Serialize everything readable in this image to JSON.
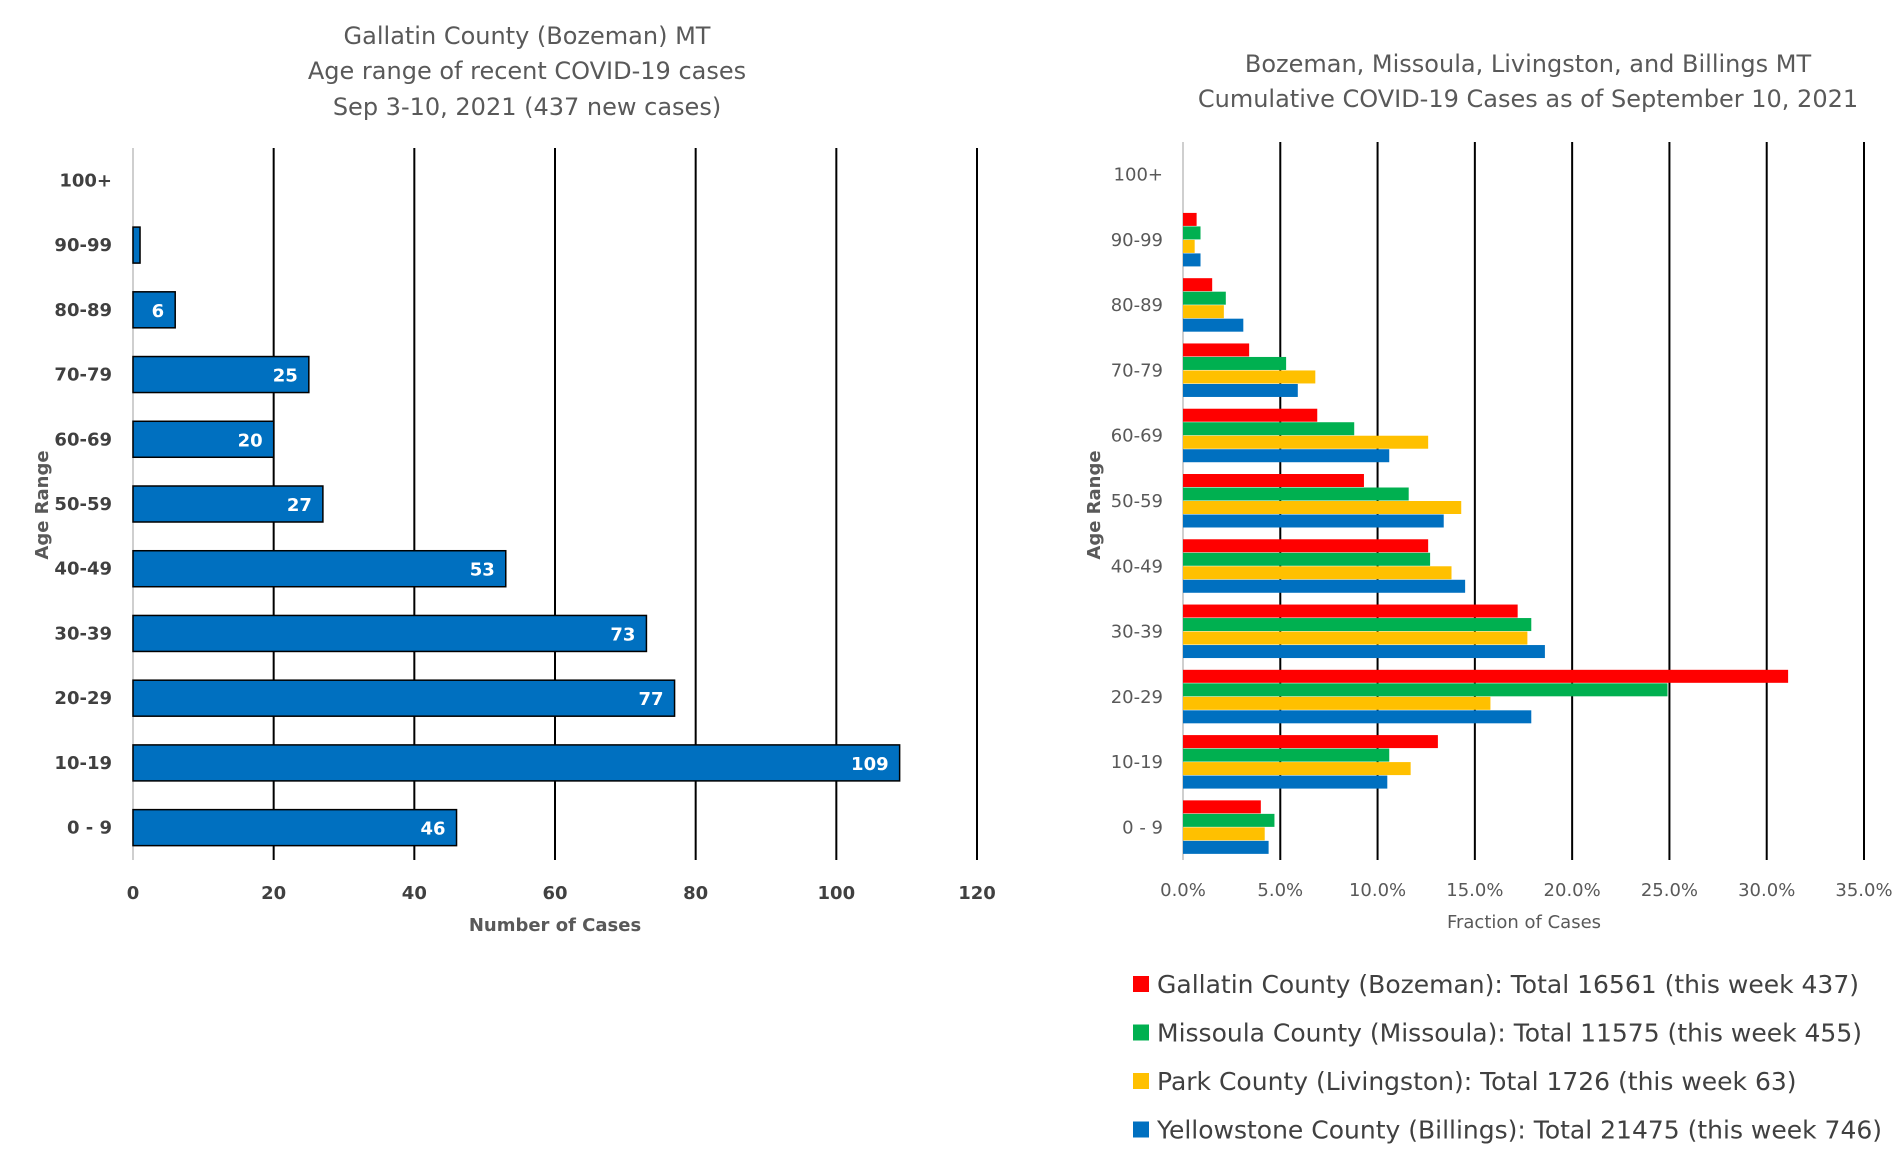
{
  "chart_data": [
    {
      "type": "bar",
      "orientation": "horizontal",
      "title": [
        "Gallatin County (Bozeman) MT",
        "Age range of recent COVID-19 cases",
        "Sep 3-10, 2021 (437 new cases)"
      ],
      "xlabel": "Number of Cases",
      "ylabel": "Age Range",
      "categories": [
        "0 - 9",
        "10-19",
        "20-29",
        "30-39",
        "40-49",
        "50-59",
        "60-69",
        "70-79",
        "80-89",
        "90-99",
        "100+"
      ],
      "values": [
        46,
        109,
        77,
        73,
        53,
        27,
        20,
        25,
        6,
        1,
        0
      ],
      "data_labels": [
        "46",
        "109",
        "77",
        "73",
        "53",
        "27",
        "20",
        "25",
        "6",
        "",
        ""
      ],
      "xlim": [
        0,
        120
      ],
      "xticks": [
        "0",
        "20",
        "40",
        "60",
        "80",
        "100",
        "120"
      ],
      "grid": true,
      "bar_color": "#0070C0"
    },
    {
      "type": "bar",
      "orientation": "horizontal",
      "title": [
        "Bozeman, Missoula, Livingston, and Billings MT",
        "Cumulative COVID-19 Cases as of September 10, 2021"
      ],
      "xlabel": "Fraction of Cases",
      "ylabel": "Age Range",
      "categories": [
        "0 - 9",
        "10-19",
        "20-29",
        "30-39",
        "40-49",
        "50-59",
        "60-69",
        "70-79",
        "80-89",
        "90-99",
        "100+"
      ],
      "xlim": [
        0,
        0.35
      ],
      "xticks": [
        "0.0%",
        "5.0%",
        "10.0%",
        "15.0%",
        "20.0%",
        "25.0%",
        "30.0%",
        "35.0%"
      ],
      "grid": true,
      "legend_position": "bottom",
      "series": [
        {
          "name": "Gallatin County (Bozeman): Total 16561 (this week 437)",
          "color": "#FF0000",
          "values": [
            0.04,
            0.131,
            0.311,
            0.172,
            0.126,
            0.093,
            0.069,
            0.034,
            0.015,
            0.007,
            0
          ]
        },
        {
          "name": "Missoula County (Missoula): Total 11575 (this week 455)",
          "color": "#00B050",
          "values": [
            0.047,
            0.106,
            0.249,
            0.179,
            0.127,
            0.116,
            0.088,
            0.053,
            0.022,
            0.009,
            0
          ]
        },
        {
          "name": "Park County (Livingston): Total 1726 (this week 63)",
          "color": "#FFC000",
          "values": [
            0.042,
            0.117,
            0.158,
            0.177,
            0.138,
            0.143,
            0.126,
            0.068,
            0.021,
            0.006,
            0
          ]
        },
        {
          "name": "Yellowstone County (Billings): Total 21475 (this week 746)",
          "color": "#0070C0",
          "values": [
            0.044,
            0.105,
            0.179,
            0.186,
            0.145,
            0.134,
            0.106,
            0.059,
            0.031,
            0.009,
            0
          ]
        }
      ]
    }
  ]
}
